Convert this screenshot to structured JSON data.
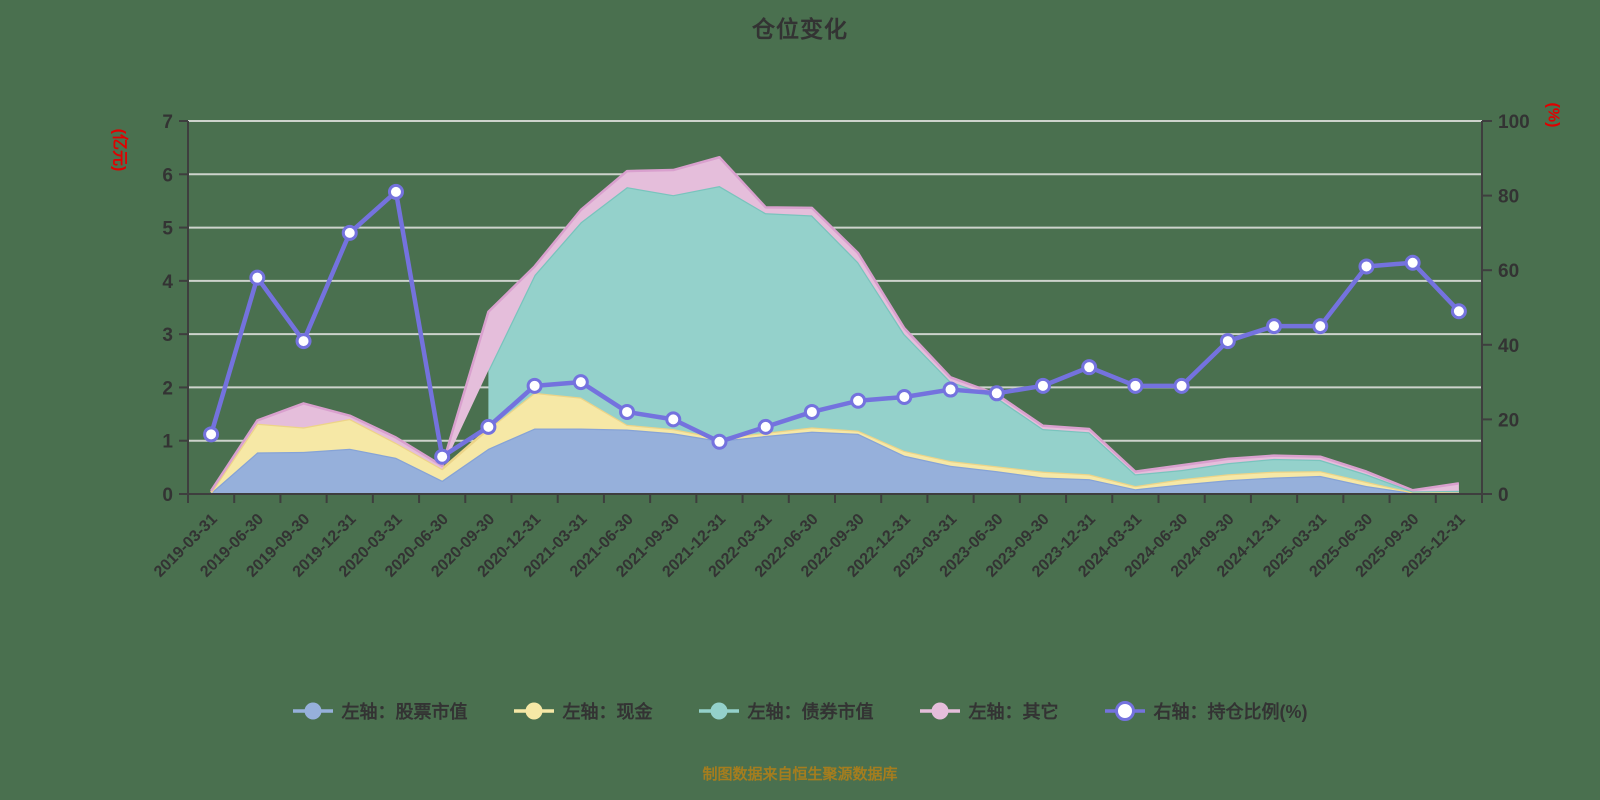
{
  "title": "仓位变化",
  "source_note": "制图数据来自恒生聚源数据库",
  "colors": {
    "background": "#4A704F",
    "grid": "#CDD3CC",
    "axis": "#3E3E3E",
    "text": "#333333",
    "axis_unit_red": "#E00000",
    "source_text": "#A57D1E"
  },
  "chart_data": {
    "type": "area",
    "stacked": true,
    "grid": true,
    "legend_position": "bottom",
    "title": "仓位变化",
    "categories": [
      "2019-03-31",
      "2019-06-30",
      "2019-09-30",
      "2019-12-31",
      "2020-03-31",
      "2020-06-30",
      "2020-09-30",
      "2020-12-31",
      "2021-03-31",
      "2021-06-30",
      "2021-09-30",
      "2021-12-31",
      "2022-03-31",
      "2022-06-30",
      "2022-09-30",
      "2022-12-31",
      "2023-03-31",
      "2023-06-30",
      "2023-09-30",
      "2023-12-31",
      "2024-03-31",
      "2024-06-30",
      "2024-09-30",
      "2024-12-31",
      "2025-03-31",
      "2025-06-30",
      "2025-09-30",
      "2025-12-31"
    ],
    "left_axis": {
      "label": "(亿元)",
      "min": 0,
      "max": 7,
      "ticks": [
        0,
        1,
        2,
        3,
        4,
        5,
        6,
        7
      ]
    },
    "right_axis": {
      "label": "(%)",
      "min": 0,
      "max": 100,
      "ticks": [
        0,
        20,
        40,
        60,
        80,
        100
      ]
    },
    "series": [
      {
        "name": "左轴：股票市值",
        "type": "area",
        "axis": "left",
        "color": "#96B0DB",
        "edge": "#86A3D6",
        "values": [
          0.02,
          0.78,
          0.79,
          0.85,
          0.68,
          0.25,
          0.85,
          1.23,
          1.23,
          1.21,
          1.14,
          1.0,
          1.09,
          1.17,
          1.13,
          0.72,
          0.53,
          0.43,
          0.31,
          0.28,
          0.09,
          0.18,
          0.26,
          0.31,
          0.34,
          0.15,
          0.02,
          0.03
        ]
      },
      {
        "name": "左轴：现金",
        "type": "area",
        "axis": "left",
        "color": "#F6E8A6",
        "edge": "#EDD488",
        "values": [
          0.01,
          0.54,
          0.46,
          0.56,
          0.28,
          0.22,
          0.37,
          0.67,
          0.58,
          0.09,
          0.08,
          0.05,
          0.06,
          0.08,
          0.06,
          0.09,
          0.09,
          0.09,
          0.11,
          0.09,
          0.06,
          0.1,
          0.11,
          0.11,
          0.09,
          0.08,
          0.01,
          0.02
        ]
      },
      {
        "name": "左轴：债券市值",
        "type": "area",
        "axis": "left",
        "color": "#94D1CB",
        "edge": "#79C4BD",
        "values": [
          null,
          null,
          null,
          null,
          null,
          null,
          1.1,
          2.21,
          3.29,
          4.46,
          4.39,
          4.73,
          4.12,
          3.98,
          3.16,
          2.19,
          1.49,
          1.29,
          0.8,
          0.79,
          0.22,
          0.17,
          0.21,
          0.24,
          0.21,
          0.14,
          0.02,
          0.01
        ]
      },
      {
        "name": "左轴：其它",
        "type": "area",
        "axis": "left",
        "color": "#E5BEDB",
        "edge": "#D9A0CE",
        "values": [
          0.03,
          0.06,
          0.45,
          0.06,
          0.1,
          0.06,
          1.1,
          0.16,
          0.23,
          0.3,
          0.47,
          0.54,
          0.11,
          0.14,
          0.17,
          0.11,
          0.08,
          0.06,
          0.06,
          0.06,
          0.05,
          0.09,
          0.08,
          0.06,
          0.06,
          0.05,
          0.02,
          0.14
        ]
      },
      {
        "name": "右轴：持仓比例(%)",
        "type": "line",
        "axis": "right",
        "color": "#7472DE",
        "edge": "#7472DE",
        "values": [
          16,
          58,
          41,
          70,
          81,
          10,
          18,
          29,
          30,
          22,
          20,
          14,
          18,
          22,
          25,
          26,
          28,
          27,
          29,
          34,
          29,
          29,
          41,
          45,
          45,
          61,
          62,
          49
        ]
      }
    ]
  }
}
